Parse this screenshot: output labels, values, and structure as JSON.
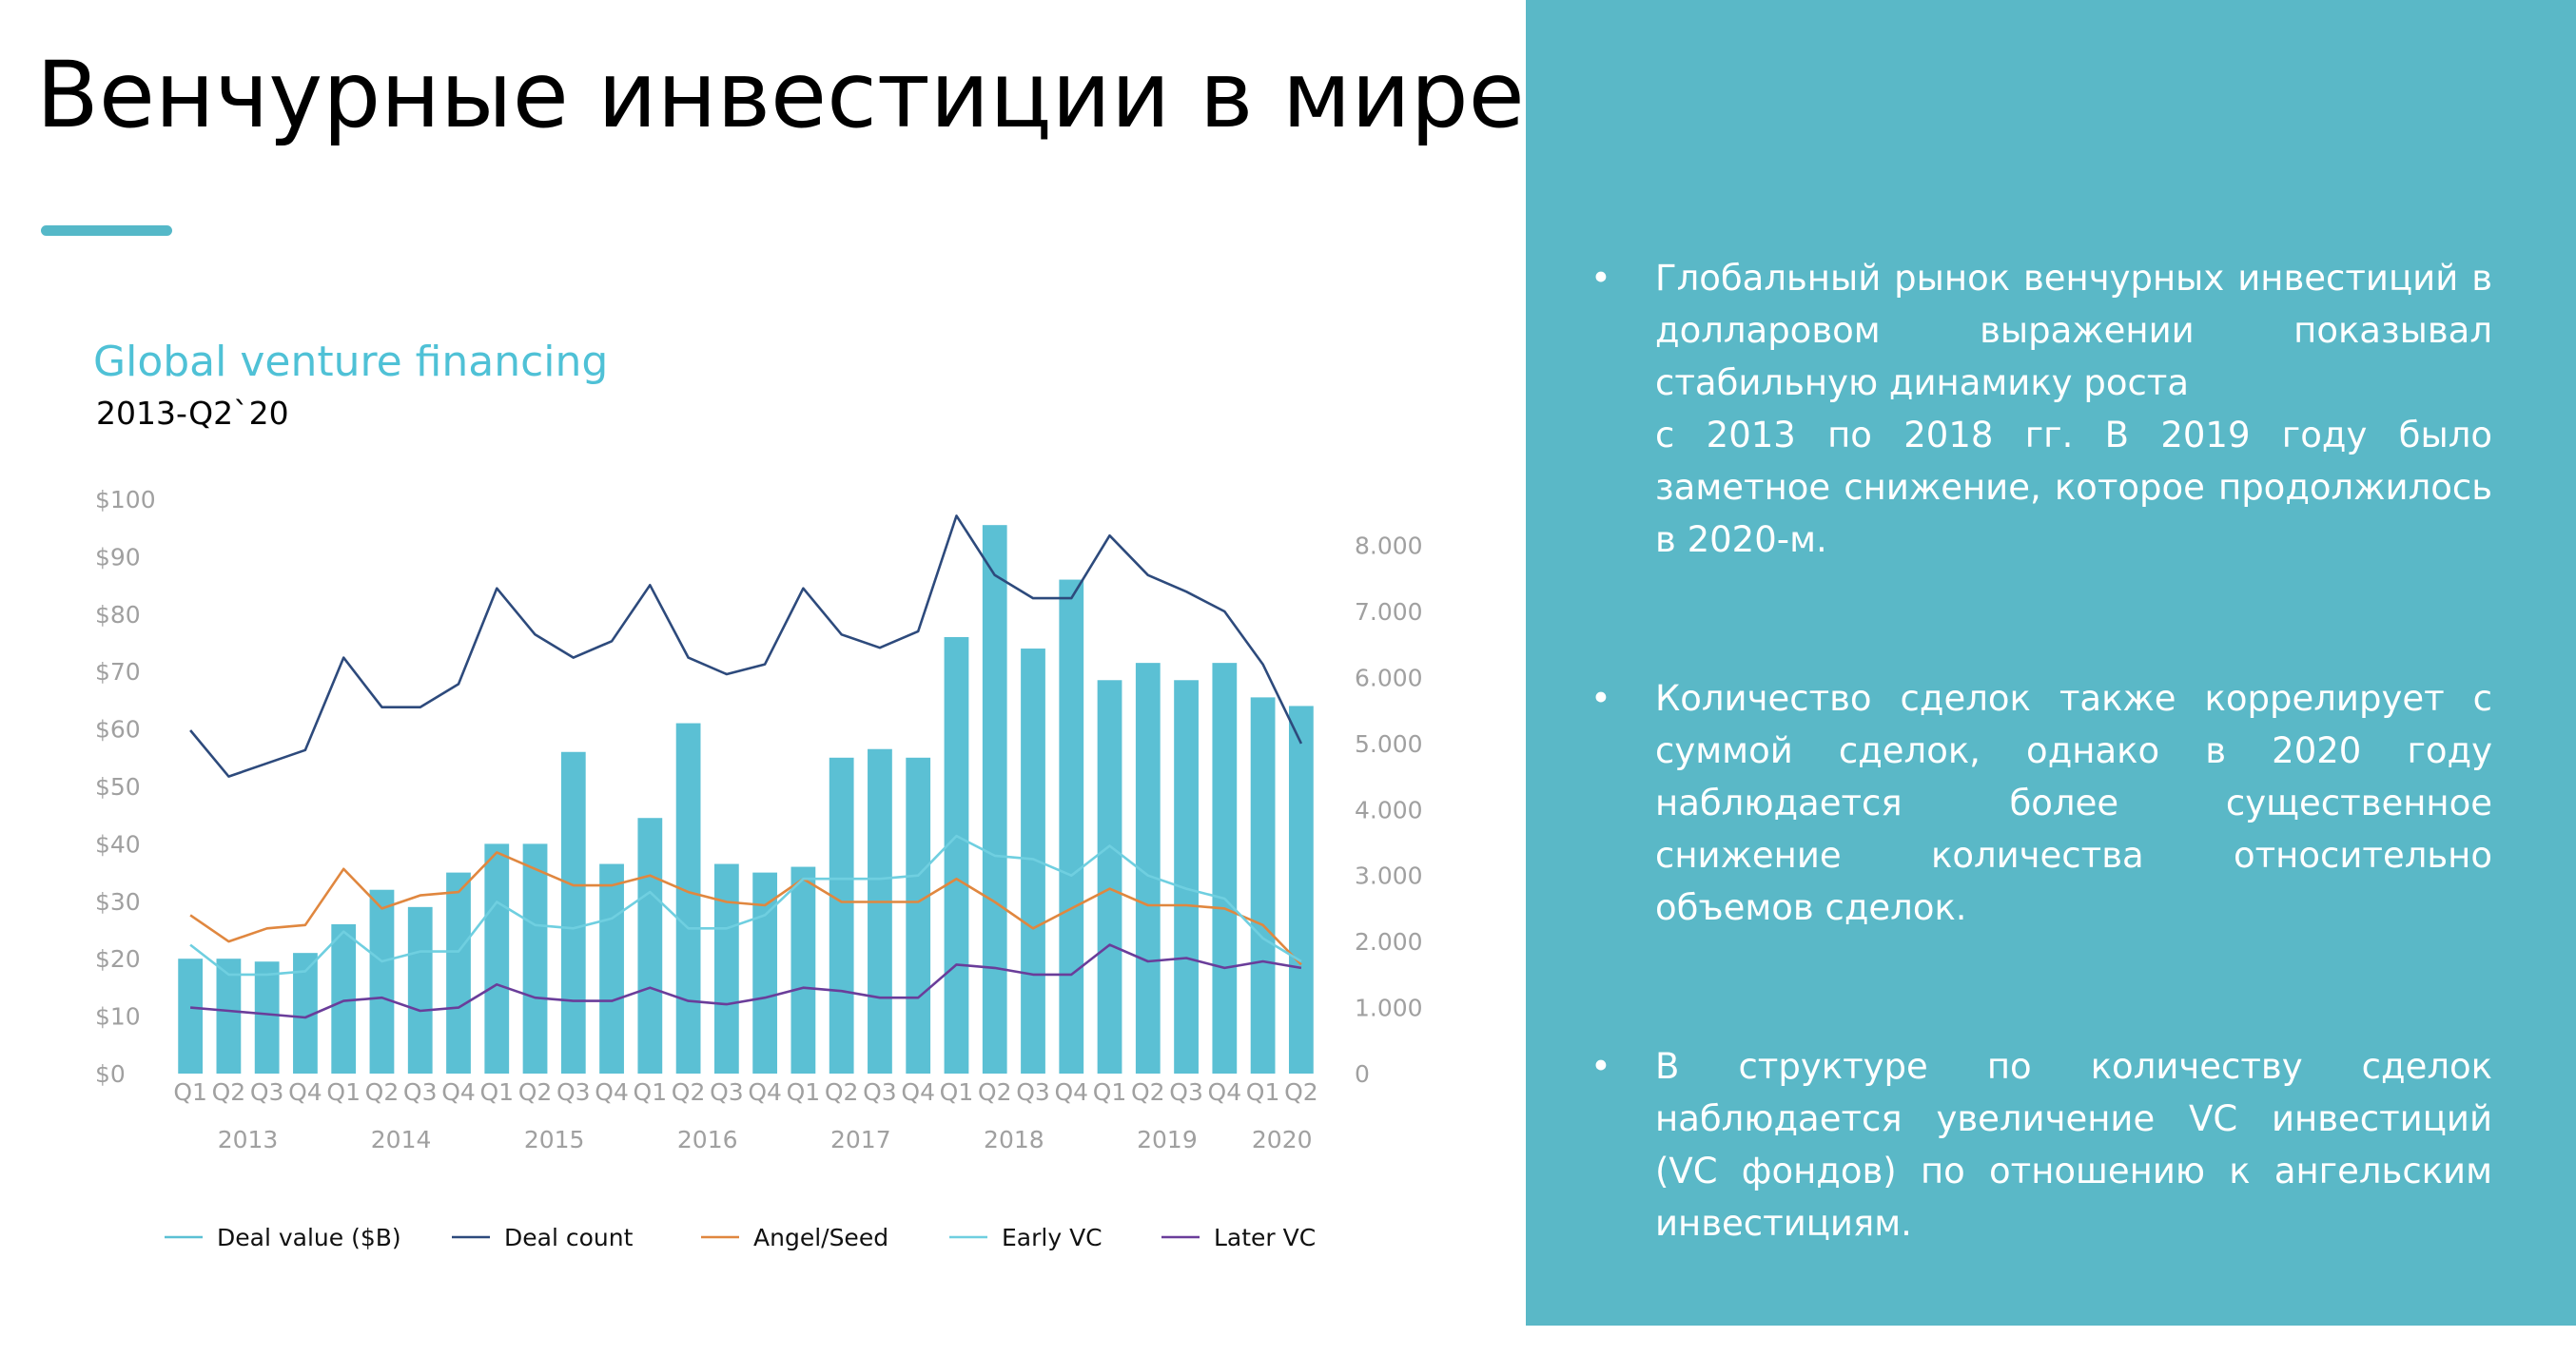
{
  "slide": {
    "title": "Венчурные инвестиции в мире",
    "bullets": [
      "Глобальный рынок венчурных инвестиций в долларовом выражении показывал стабильную динамику роста\nс 2013 по 2018 гг. В 2019 году было заметное снижение, которое продолжилось в 2020-м.",
      "Количество сделок также коррелирует с суммой сделок, однако в 2020 году наблюдается более существенное снижение количества относительно объемов сделок.",
      "В структуре по количеству сделок наблюдается увеличение VC инвестиций (VC фондов) по отношению к ангельским инвестициям."
    ],
    "bullet_symbol": "•"
  },
  "colors": {
    "accent": "#55b8c8",
    "panel": "#5ab8c7",
    "deal_value": "#5bc0d4",
    "deal_count": "#2d4a7c",
    "angel_seed": "#e0873f",
    "early_vc": "#6fcfe0",
    "later_vc": "#6a3d9a"
  },
  "chart_data": {
    "type": "bar",
    "title": "Global venture financing",
    "subtitle": "2013-Q2`20",
    "categories": [
      "Q1",
      "Q2",
      "Q3",
      "Q4",
      "Q1",
      "Q2",
      "Q3",
      "Q4",
      "Q1",
      "Q2",
      "Q3",
      "Q4",
      "Q1",
      "Q2",
      "Q3",
      "Q4",
      "Q1",
      "Q2",
      "Q3",
      "Q4",
      "Q1",
      "Q2",
      "Q3",
      "Q4",
      "Q1",
      "Q2",
      "Q3",
      "Q4",
      "Q1",
      "Q2"
    ],
    "years": [
      {
        "label": "2013",
        "from": 0,
        "to": 3
      },
      {
        "label": "2014",
        "from": 4,
        "to": 7
      },
      {
        "label": "2015",
        "from": 8,
        "to": 11
      },
      {
        "label": "2016",
        "from": 12,
        "to": 15
      },
      {
        "label": "2017",
        "from": 16,
        "to": 19
      },
      {
        "label": "2018",
        "from": 20,
        "to": 23
      },
      {
        "label": "2019",
        "from": 24,
        "to": 27
      },
      {
        "label": "2020",
        "from": 28,
        "to": 29
      }
    ],
    "left_axis": {
      "ylim": [
        0,
        100
      ],
      "ticks": [
        "$0",
        "$10",
        "$20",
        "$30",
        "$40",
        "$50",
        "$60",
        "$70",
        "$80",
        "$90",
        "$100"
      ]
    },
    "right_axis": {
      "ylim": [
        0,
        8700
      ],
      "ticks": [
        "0",
        "1.000",
        "2.000",
        "3.000",
        "4.000",
        "5.000",
        "6.000",
        "7.000",
        "8.000"
      ]
    },
    "series": [
      {
        "name": "Deal value ($B)",
        "type": "bar",
        "axis": "left",
        "values": [
          20,
          20,
          19.5,
          21,
          26,
          32,
          29,
          35,
          40,
          40,
          56,
          36.5,
          44.5,
          61,
          36.5,
          35,
          36,
          55,
          56.5,
          55,
          76,
          95.5,
          74,
          86,
          68.5,
          71.5,
          68.5,
          71.5,
          65.5,
          64
        ]
      },
      {
        "name": "Deal count",
        "type": "line",
        "axis": "right",
        "values": [
          5200,
          4500,
          4700,
          4900,
          6300,
          5550,
          5550,
          5900,
          7350,
          6650,
          6300,
          6550,
          7400,
          6300,
          6050,
          6200,
          7350,
          6650,
          6450,
          6700,
          8450,
          7550,
          7200,
          7200,
          8150,
          7550,
          7300,
          7000,
          6200,
          5000
        ]
      },
      {
        "name": "Angel/Seed",
        "type": "line",
        "axis": "right",
        "values": [
          2400,
          2000,
          2200,
          2250,
          3100,
          2500,
          2700,
          2750,
          3350,
          3100,
          2850,
          2850,
          3000,
          2750,
          2600,
          2550,
          2950,
          2600,
          2600,
          2600,
          2950,
          2600,
          2200,
          2500,
          2800,
          2550,
          2550,
          2500,
          2250,
          1650
        ]
      },
      {
        "name": "Early VC",
        "type": "line",
        "axis": "right",
        "values": [
          1950,
          1500,
          1500,
          1550,
          2150,
          1700,
          1850,
          1850,
          2600,
          2250,
          2200,
          2350,
          2750,
          2200,
          2200,
          2400,
          2950,
          2950,
          2950,
          3000,
          3600,
          3300,
          3250,
          3000,
          3450,
          3000,
          2800,
          2650,
          2050,
          1700
        ]
      },
      {
        "name": "Later VC",
        "type": "line",
        "axis": "right",
        "values": [
          1000,
          950,
          900,
          850,
          1100,
          1150,
          950,
          1000,
          1350,
          1150,
          1100,
          1100,
          1300,
          1100,
          1050,
          1150,
          1300,
          1250,
          1150,
          1150,
          1650,
          1600,
          1500,
          1500,
          1950,
          1700,
          1750,
          1600,
          1700,
          1600
        ]
      }
    ],
    "legend_position": "bottom"
  }
}
